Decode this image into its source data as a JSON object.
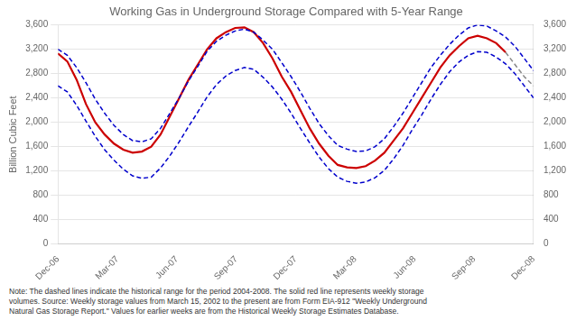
{
  "chart_data": {
    "type": "line",
    "title": "Working Gas in Underground Storage Compared with 5-Year Range",
    "ylabel": "Billion Cubic Feet",
    "note": "Note:   The dashed lines indicate the historical range for the period 2004-2008.  The solid red line represents weekly storage\nvolumes.  Source:  Weekly storage values from March 15, 2002 to the present are from Form EIA-912 \"Weekly Underground\nNatural Gas Storage Report.\"  Values for earlier weeks are from the Historical Weekly Storage Estimates Database.",
    "x": [
      0,
      1,
      2,
      3,
      4,
      5,
      6,
      7,
      8,
      9,
      10,
      11,
      12,
      13,
      14,
      15,
      16,
      17,
      18,
      19,
      20,
      21,
      22,
      23,
      24,
      25,
      26,
      27,
      28,
      29,
      30,
      31,
      32,
      33,
      34,
      35,
      36,
      37,
      38,
      39,
      40,
      41,
      42,
      43,
      44,
      45,
      46,
      47,
      48,
      49,
      50,
      51
    ],
    "xlim": [
      0,
      51
    ],
    "xticks": [
      {
        "value": 0,
        "label": "Dec-06"
      },
      {
        "value": 6.375,
        "label": "Mar-07"
      },
      {
        "value": 12.75,
        "label": "Jun-07"
      },
      {
        "value": 19.125,
        "label": "Sep-07"
      },
      {
        "value": 25.5,
        "label": "Dec-07"
      },
      {
        "value": 31.875,
        "label": "Mar-08"
      },
      {
        "value": 38.25,
        "label": "Jun-08"
      },
      {
        "value": 44.625,
        "label": "Sep-08"
      },
      {
        "value": 51,
        "label": "Dec-08"
      }
    ],
    "ylim": [
      0,
      3600
    ],
    "yticks": [
      0,
      400,
      800,
      {
        "value": 1200,
        "label": "1,200"
      },
      {
        "value": 1600,
        "label": "1,600"
      },
      {
        "value": 2000,
        "label": "2,000"
      },
      {
        "value": 2400,
        "label": "2,400"
      },
      {
        "value": 2800,
        "label": "2,800"
      },
      {
        "value": 3200,
        "label": "3,200"
      },
      {
        "value": 3600,
        "label": "3,600"
      }
    ],
    "y2lim": [
      0,
      3600
    ],
    "y2ticks": [
      0,
      400,
      800,
      {
        "value": 1200,
        "label": "1,200"
      },
      {
        "value": 1600,
        "label": "1,600"
      },
      {
        "value": 2000,
        "label": "2,000"
      },
      {
        "value": 2400,
        "label": "2,400"
      },
      {
        "value": 2800,
        "label": "2,800"
      },
      {
        "value": 3200,
        "label": "3,200"
      },
      {
        "value": 3600,
        "label": "3,600"
      }
    ],
    "grid": "y",
    "series": [
      {
        "color": "#0000cc",
        "line_style": "dashed",
        "values": [
          3200,
          3100,
          2900,
          2650,
          2380,
          2150,
          1950,
          1800,
          1700,
          1680,
          1730,
          1900,
          2150,
          2400,
          2680,
          2920,
          3170,
          3330,
          3430,
          3500,
          3530,
          3480,
          3350,
          3200,
          2980,
          2750,
          2500,
          2230,
          1980,
          1780,
          1620,
          1560,
          1520,
          1530,
          1600,
          1730,
          1930,
          2150,
          2400,
          2650,
          2900,
          3100,
          3280,
          3430,
          3550,
          3600,
          3580,
          3500,
          3400,
          3250,
          3050,
          2850
        ]
      },
      {
        "color": "#0000cc",
        "line_style": "dashed",
        "values": [
          2600,
          2500,
          2280,
          2020,
          1770,
          1550,
          1380,
          1230,
          1120,
          1080,
          1100,
          1250,
          1450,
          1680,
          1930,
          2170,
          2420,
          2620,
          2760,
          2850,
          2900,
          2870,
          2740,
          2580,
          2380,
          2150,
          1900,
          1660,
          1430,
          1240,
          1100,
          1030,
          1000,
          1020,
          1090,
          1210,
          1400,
          1620,
          1880,
          2120,
          2380,
          2620,
          2830,
          2990,
          3100,
          3160,
          3150,
          3070,
          2960,
          2800,
          2600,
          2400
        ]
      },
      {
        "color": "#cc0000",
        "line_style": "solid",
        "values": [
          3130,
          3000,
          2700,
          2300,
          2000,
          1800,
          1650,
          1550,
          1500,
          1520,
          1600,
          1800,
          2100,
          2400,
          2700,
          2950,
          3200,
          3380,
          3480,
          3550,
          3560,
          3480,
          3300,
          3050,
          2750,
          2500,
          2200,
          1900,
          1650,
          1450,
          1300,
          1260,
          1250,
          1280,
          1370,
          1500,
          1700,
          1900,
          2150,
          2400,
          2650,
          2900,
          3100,
          3250,
          3380,
          3420,
          3380,
          3300,
          3150,
          null,
          null,
          null
        ]
      },
      {
        "color": "#888888",
        "line_style": "dashed",
        "values": [
          null,
          null,
          null,
          null,
          null,
          null,
          null,
          null,
          null,
          null,
          null,
          null,
          null,
          null,
          null,
          null,
          null,
          null,
          null,
          null,
          null,
          null,
          null,
          null,
          null,
          null,
          null,
          null,
          null,
          null,
          null,
          null,
          null,
          null,
          null,
          null,
          null,
          null,
          null,
          null,
          null,
          null,
          null,
          null,
          null,
          null,
          null,
          null,
          3150,
          2950,
          2750,
          2600
        ]
      }
    ]
  }
}
